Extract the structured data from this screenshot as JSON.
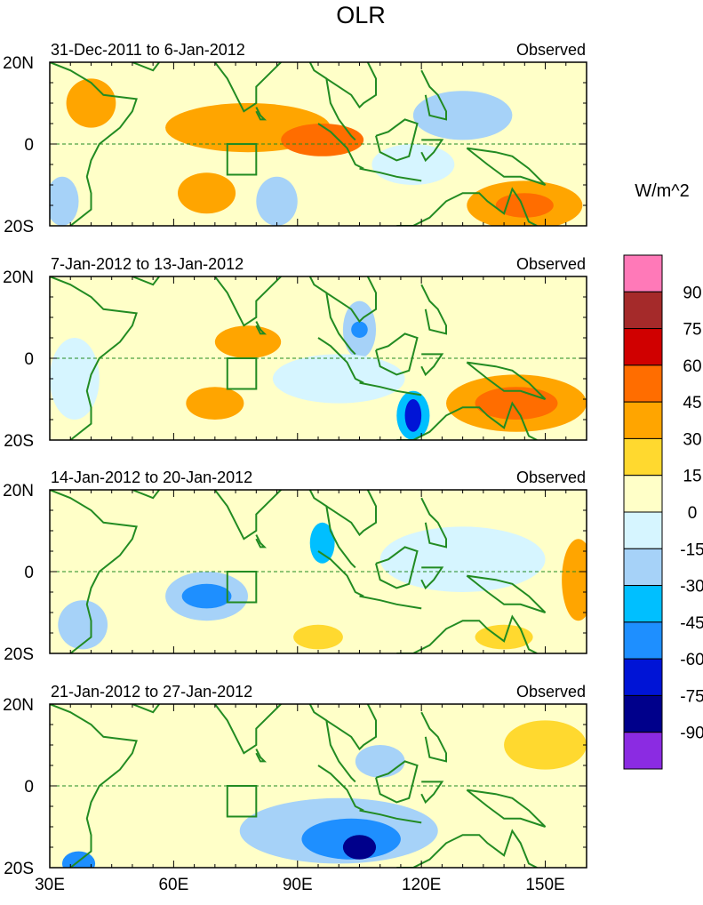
{
  "chart_data": {
    "type": "heatmap",
    "title": "OLR",
    "units": "W/m^2",
    "colorbar": {
      "labels": [
        "90",
        "75",
        "60",
        "45",
        "30",
        "15",
        "0",
        "-15",
        "-30",
        "-45",
        "-60",
        "-75",
        "-90"
      ],
      "colors": [
        "#ff79b8",
        "#a52a2a",
        "#d00000",
        "#ff6d00",
        "#ffa500",
        "#ffd92f",
        "#ffffc8",
        "#d6f5ff",
        "#a6d2f8",
        "#00bfff",
        "#1e8fff",
        "#0014d6",
        "#00008b",
        "#8b2be2"
      ]
    },
    "x_ticks": [
      "30E",
      "60E",
      "90E",
      "120E",
      "150E"
    ],
    "x_tick_values": [
      30,
      60,
      90,
      120,
      150
    ],
    "x_range": [
      30,
      160
    ],
    "y_range": [
      -20,
      20
    ],
    "y_ticks": [
      "20N",
      "0",
      "20S"
    ],
    "y_tick_values": [
      20,
      0,
      -20
    ],
    "equator_line": "dashed",
    "box": {
      "lon": [
        73,
        80
      ],
      "lat": [
        -7.5,
        0
      ]
    },
    "panels": [
      {
        "period": "31-Dec-2011 to 6-Jan-2012",
        "label": "Observed",
        "features": [
          {
            "lon": 78,
            "lat": 4,
            "rx": 20,
            "ry": 6,
            "value": 30
          },
          {
            "lon": 96,
            "lat": 1,
            "rx": 10,
            "ry": 4,
            "value": 45
          },
          {
            "lon": 40,
            "lat": 10,
            "rx": 6,
            "ry": 6,
            "value": 30
          },
          {
            "lon": 68,
            "lat": -12,
            "rx": 7,
            "ry": 5,
            "value": 30
          },
          {
            "lon": 145,
            "lat": -15,
            "rx": 14,
            "ry": 6,
            "value": 30
          },
          {
            "lon": 145,
            "lat": -15,
            "rx": 7,
            "ry": 3,
            "value": 45
          },
          {
            "lon": 130,
            "lat": 7,
            "rx": 12,
            "ry": 6,
            "value": -30
          },
          {
            "lon": 85,
            "lat": -14,
            "rx": 5,
            "ry": 6,
            "value": -30
          },
          {
            "lon": 33,
            "lat": -14,
            "rx": 4,
            "ry": 6,
            "value": -30
          },
          {
            "lon": 118,
            "lat": -5,
            "rx": 10,
            "ry": 5,
            "value": -15
          }
        ]
      },
      {
        "period": "7-Jan-2012 to 13-Jan-2012",
        "label": "Observed",
        "features": [
          {
            "lon": 78,
            "lat": 4,
            "rx": 8,
            "ry": 4,
            "value": 30
          },
          {
            "lon": 70,
            "lat": -11,
            "rx": 7,
            "ry": 4,
            "value": 30
          },
          {
            "lon": 143,
            "lat": -11,
            "rx": 17,
            "ry": 7,
            "value": 30
          },
          {
            "lon": 143,
            "lat": -11,
            "rx": 10,
            "ry": 4,
            "value": 45
          },
          {
            "lon": 105,
            "lat": 7,
            "rx": 4,
            "ry": 7,
            "value": -30
          },
          {
            "lon": 105,
            "lat": 7,
            "rx": 2,
            "ry": 2,
            "value": -60
          },
          {
            "lon": 118,
            "lat": -14,
            "rx": 4,
            "ry": 6,
            "value": -45
          },
          {
            "lon": 118,
            "lat": -14,
            "rx": 2,
            "ry": 4,
            "value": -75
          },
          {
            "lon": 100,
            "lat": -5,
            "rx": 16,
            "ry": 6,
            "value": -15
          },
          {
            "lon": 36,
            "lat": -5,
            "rx": 6,
            "ry": 10,
            "value": -15
          }
        ]
      },
      {
        "period": "14-Jan-2012 to 20-Jan-2012",
        "label": "Observed",
        "features": [
          {
            "lon": 68,
            "lat": -6,
            "rx": 10,
            "ry": 6,
            "value": -30
          },
          {
            "lon": 68,
            "lat": -6,
            "rx": 6,
            "ry": 3,
            "value": -60
          },
          {
            "lon": 96,
            "lat": 7,
            "rx": 3,
            "ry": 5,
            "value": -45
          },
          {
            "lon": 38,
            "lat": -13,
            "rx": 6,
            "ry": 6,
            "value": -30
          },
          {
            "lon": 130,
            "lat": 3,
            "rx": 20,
            "ry": 8,
            "value": -15
          },
          {
            "lon": 158,
            "lat": -2,
            "rx": 4,
            "ry": 10,
            "value": 30
          },
          {
            "lon": 140,
            "lat": -16,
            "rx": 7,
            "ry": 3,
            "value": 15
          },
          {
            "lon": 95,
            "lat": -16,
            "rx": 6,
            "ry": 3,
            "value": 15
          }
        ]
      },
      {
        "period": "21-Jan-2012 to 27-Jan-2012",
        "label": "Observed",
        "features": [
          {
            "lon": 100,
            "lat": -11,
            "rx": 24,
            "ry": 8,
            "value": -30
          },
          {
            "lon": 103,
            "lat": -13,
            "rx": 12,
            "ry": 5,
            "value": -60
          },
          {
            "lon": 105,
            "lat": -15,
            "rx": 4,
            "ry": 3,
            "value": -90
          },
          {
            "lon": 110,
            "lat": 6,
            "rx": 6,
            "ry": 4,
            "value": -30
          },
          {
            "lon": 37,
            "lat": -19,
            "rx": 4,
            "ry": 3,
            "value": -60
          },
          {
            "lon": 150,
            "lat": 10,
            "rx": 10,
            "ry": 6,
            "value": 15
          }
        ]
      }
    ]
  }
}
